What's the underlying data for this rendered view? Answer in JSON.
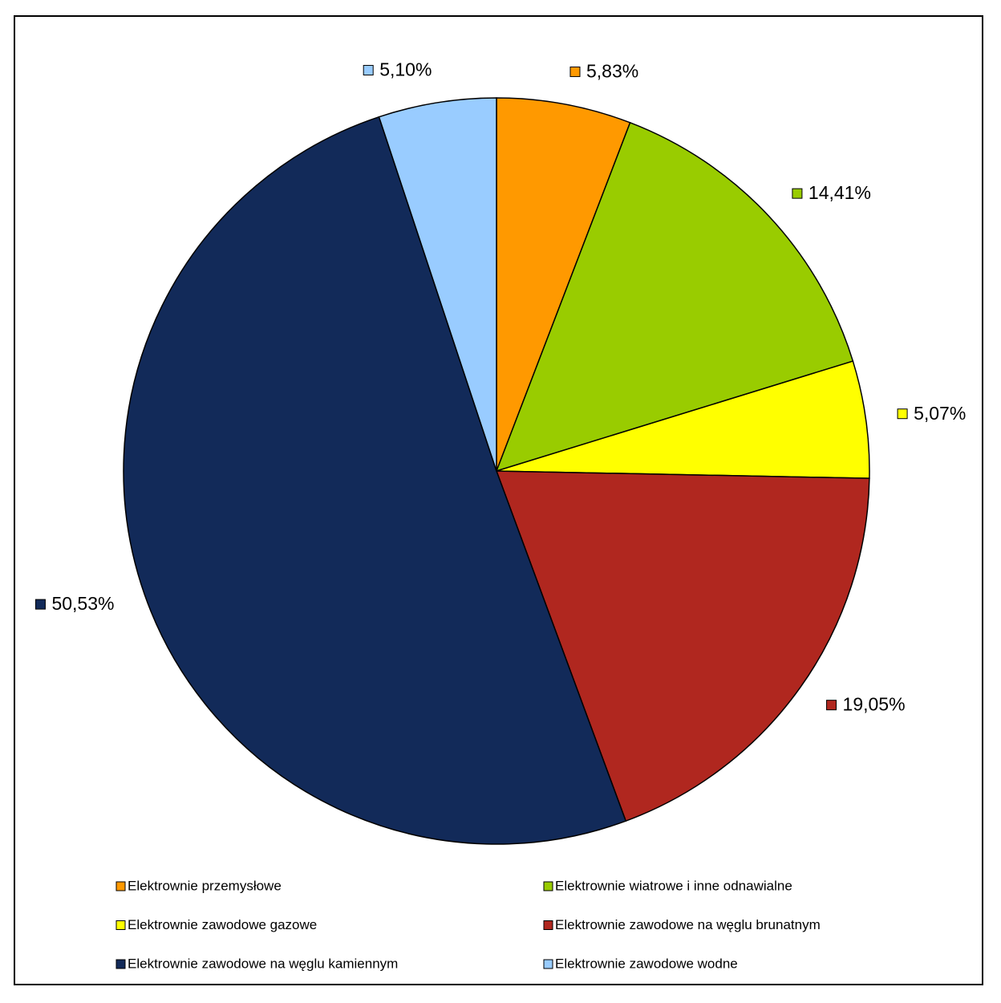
{
  "chart_data": {
    "type": "pie",
    "categories": [
      "Elektrownie przemysłowe",
      "Elektrownie wiatrowe i inne odnawialne",
      "Elektrownie zawodowe gazowe",
      "Elektrownie zawodowe na węglu brunatnym",
      "Elektrownie zawodowe na węglu kamiennym",
      "Elektrownie zawodowe wodne"
    ],
    "values": [
      5.83,
      14.41,
      5.07,
      19.05,
      50.53,
      5.1
    ],
    "value_labels": [
      "5,83%",
      "14,41%",
      "5,07%",
      "19,05%",
      "50,53%",
      "5,10%"
    ],
    "colors": [
      "#ff9900",
      "#99cc00",
      "#ffff00",
      "#b0271f",
      "#122a59",
      "#99ccff"
    ],
    "legend": "bottom"
  }
}
